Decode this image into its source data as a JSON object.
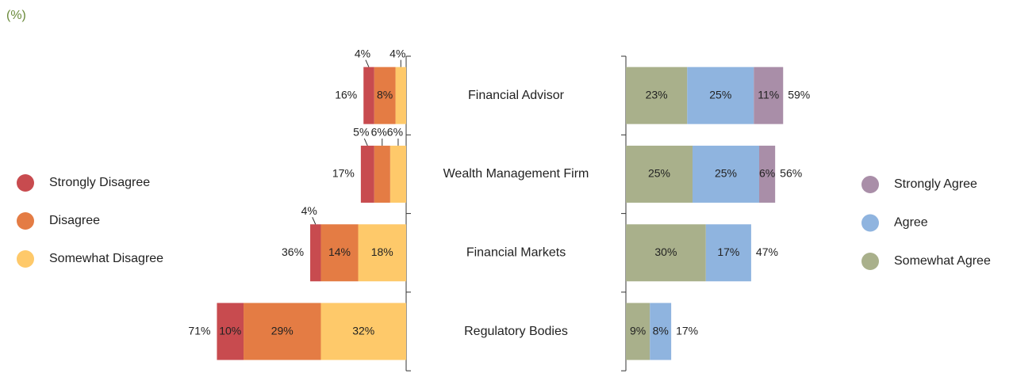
{
  "chart_data": {
    "type": "diverging_bar",
    "subtitle": "(%)",
    "categories": [
      "Financial Advisor",
      "Wealth Management Firm",
      "Financial Markets",
      "Regulatory Bodies"
    ],
    "left_series": [
      {
        "name": "Strongly Disagree",
        "color": "#c84b4f",
        "values": [
          4,
          5,
          4,
          10
        ],
        "value_labels": [
          "4%",
          "5%",
          "4%",
          "10%"
        ]
      },
      {
        "name": "Disagree",
        "color": "#e47c44",
        "values": [
          8,
          6,
          14,
          29
        ],
        "value_labels": [
          "8%",
          "6%",
          "14%",
          "29%"
        ]
      },
      {
        "name": "Somewhat Disagree",
        "color": "#fec96a",
        "values": [
          4,
          6,
          18,
          32
        ],
        "value_labels": [
          "4%",
          "6%",
          "18%",
          "32%"
        ]
      }
    ],
    "right_series": [
      {
        "name": "Strongly Agree",
        "color": "#a98ea8",
        "values": [
          11,
          6,
          null,
          null
        ],
        "value_labels": [
          "11%",
          "6%",
          null,
          null
        ]
      },
      {
        "name": "Agree",
        "color": "#8fb4df",
        "values": [
          25,
          25,
          17,
          8
        ],
        "value_labels": [
          "25%",
          "25%",
          "17%",
          "8%"
        ]
      },
      {
        "name": "Somewhat Agree",
        "color": "#a9b08b",
        "values": [
          23,
          25,
          30,
          9
        ],
        "value_labels": [
          "23%",
          "25%",
          "30%",
          "9%"
        ]
      }
    ],
    "left_totals": {
      "values": [
        16,
        17,
        36,
        71
      ],
      "value_labels": [
        "16%",
        "17%",
        "36%",
        "71%"
      ]
    },
    "right_totals": {
      "values": [
        59,
        56,
        47,
        17
      ],
      "value_labels": [
        "59%",
        "56%",
        "47%",
        "17%"
      ]
    }
  }
}
